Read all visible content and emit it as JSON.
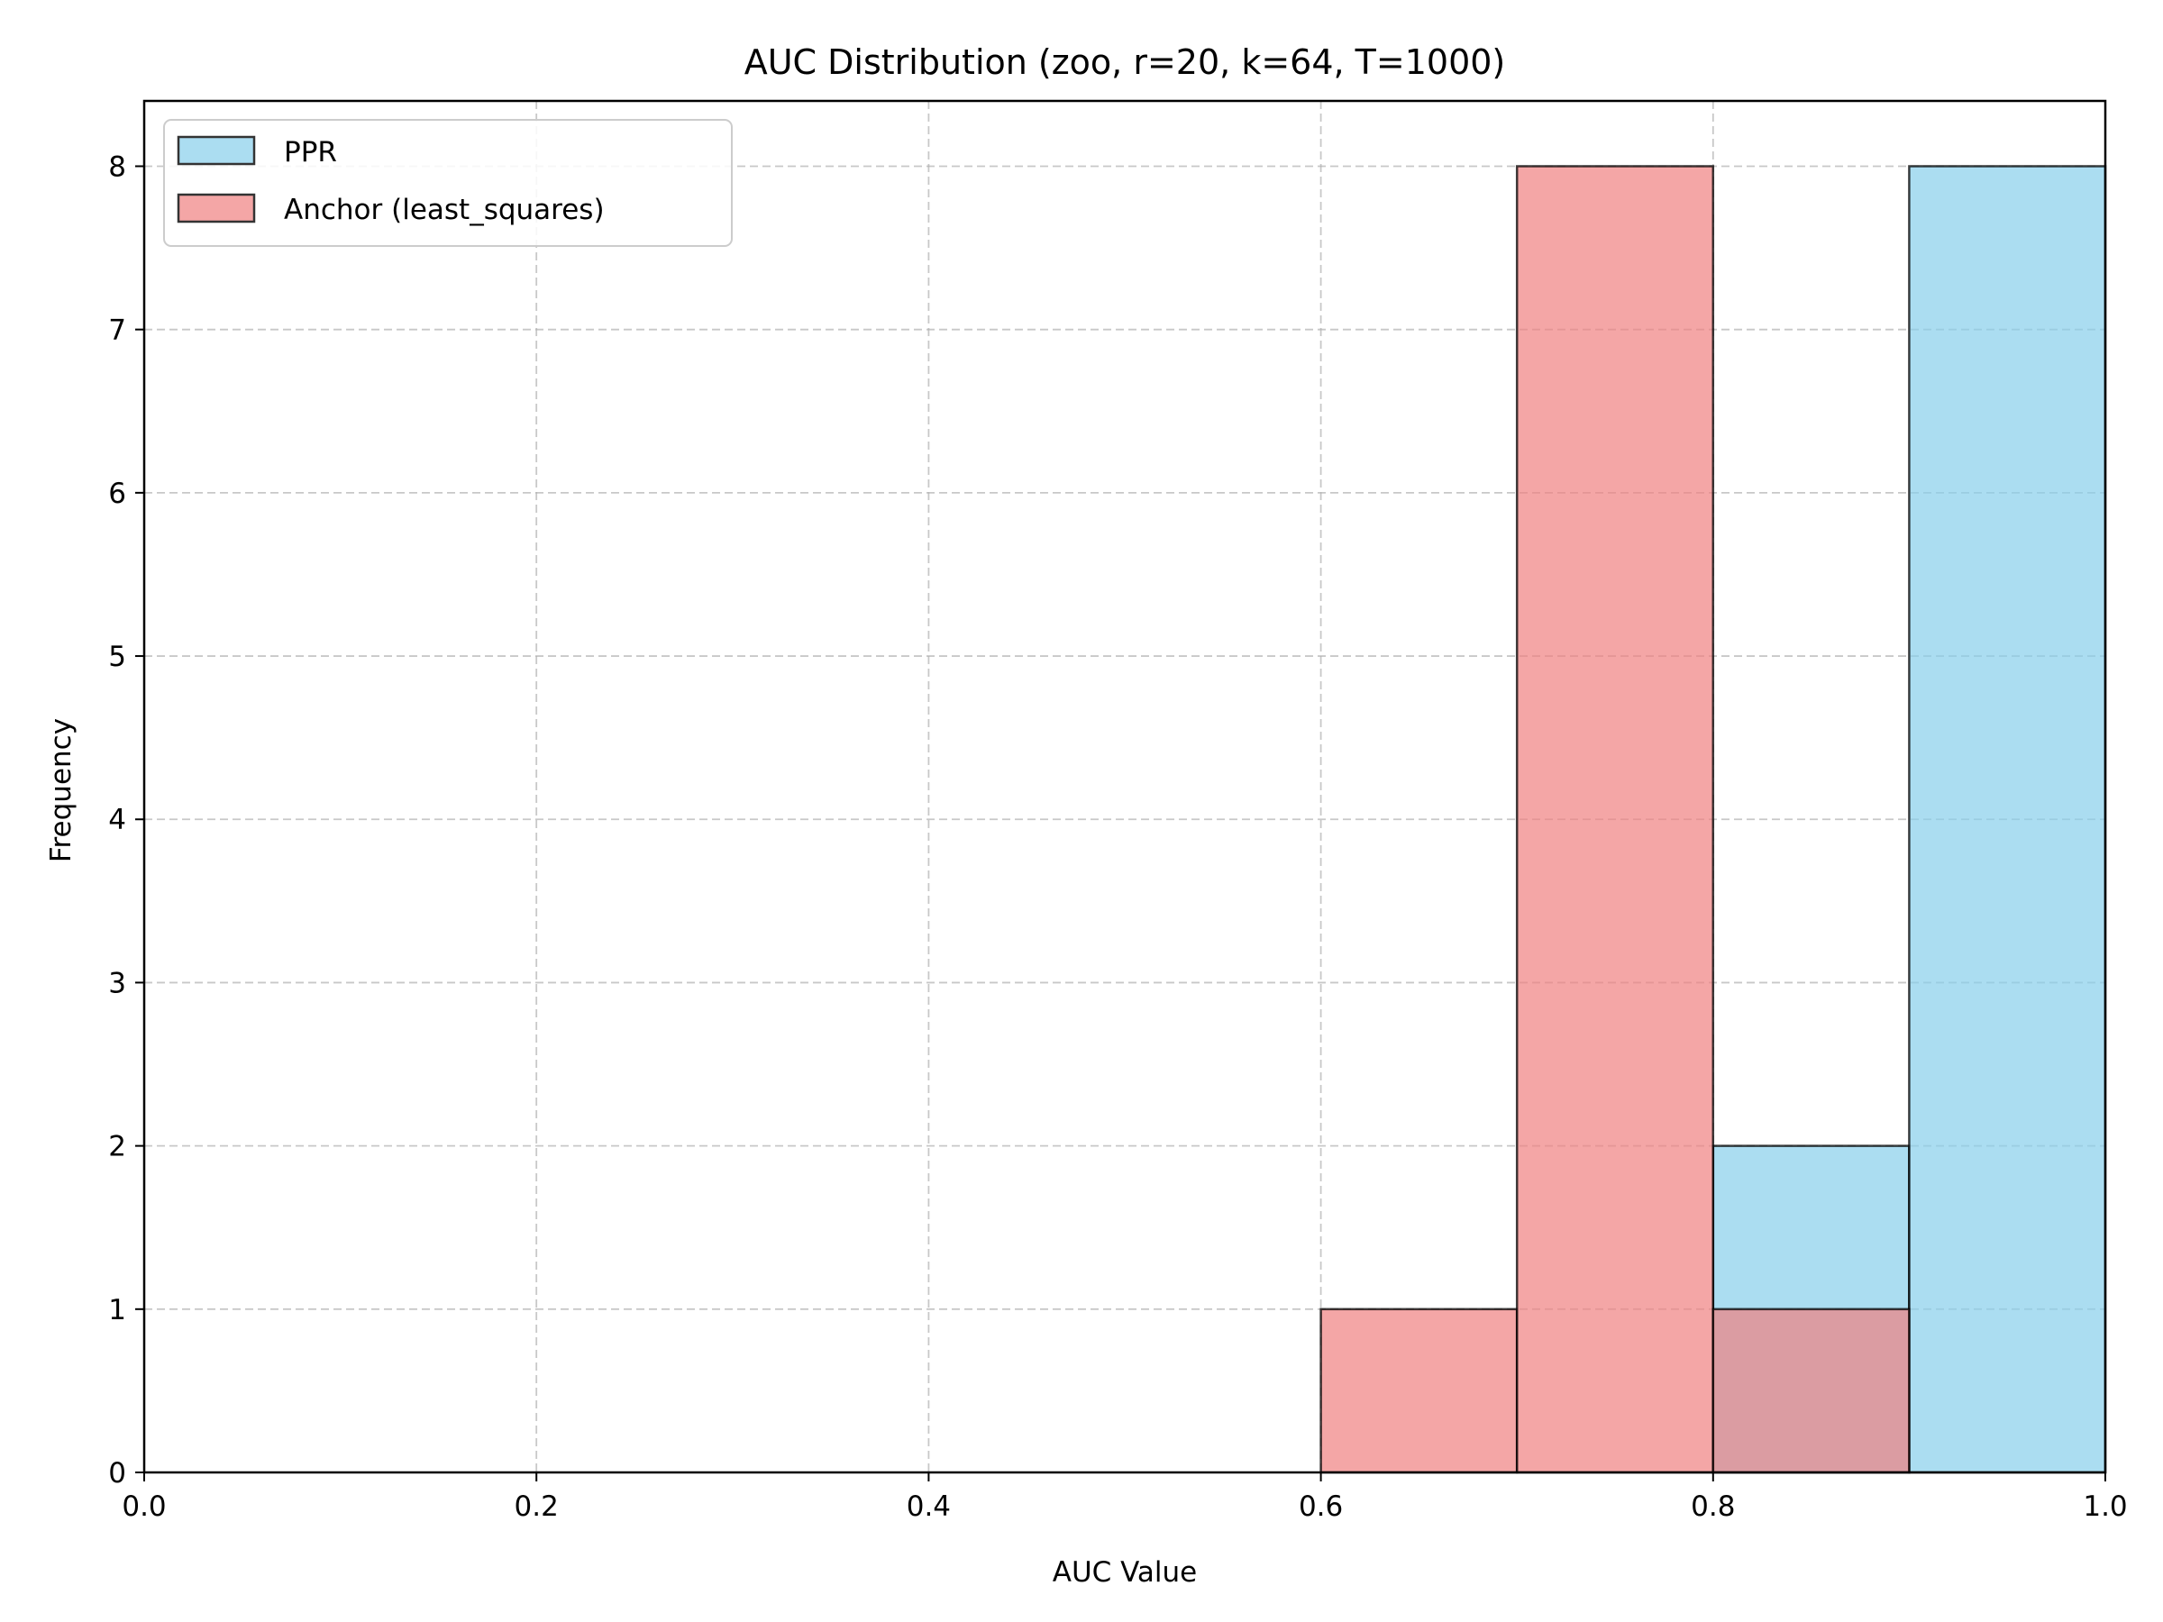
{
  "chart_data": {
    "type": "bar",
    "title": "AUC Distribution (zoo, r=20, k=64, T=1000)",
    "xlabel": "AUC Value",
    "ylabel": "Frequency",
    "xlim": [
      0.0,
      1.0
    ],
    "ylim": [
      0,
      8.4
    ],
    "xticks": [
      "0.0",
      "0.2",
      "0.4",
      "0.6",
      "0.8",
      "1.0"
    ],
    "yticks": [
      "0",
      "1",
      "2",
      "3",
      "4",
      "5",
      "6",
      "7",
      "8"
    ],
    "grid": true,
    "legend_position": "top-left",
    "bin_edges": [
      0.6,
      0.7,
      0.8,
      0.9,
      1.0
    ],
    "series": [
      {
        "name": "PPR",
        "color": "#87ceeb",
        "bins": [
          {
            "x0": 0.8,
            "x1": 0.9,
            "count": 2
          },
          {
            "x0": 0.9,
            "x1": 1.0,
            "count": 8
          }
        ]
      },
      {
        "name": "Anchor (least_squares)",
        "color": "#f08080",
        "bins": [
          {
            "x0": 0.6,
            "x1": 0.7,
            "count": 1
          },
          {
            "x0": 0.7,
            "x1": 0.8,
            "count": 8
          },
          {
            "x0": 0.8,
            "x1": 0.9,
            "count": 1
          }
        ]
      }
    ]
  }
}
